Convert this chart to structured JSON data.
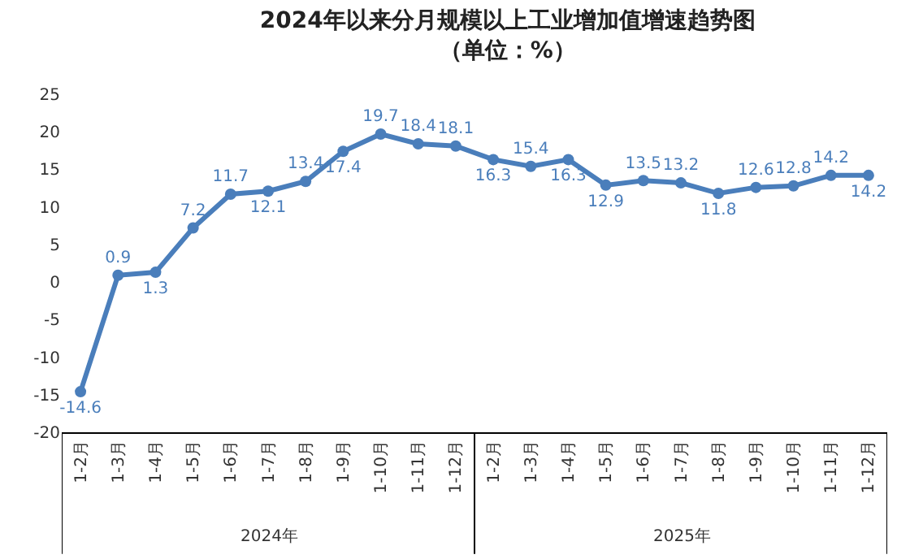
{
  "chart_data": {
    "type": "line",
    "title": "2024年以来分月规模以上工业增加值增速趋势图",
    "subtitle": "（单位：%）",
    "categories": [
      "1-2月",
      "1-3月",
      "1-4月",
      "1-5月",
      "1-6月",
      "1-7月",
      "1-8月",
      "1-9月",
      "1-10月",
      "1-11月",
      "1-12月",
      "1-2月",
      "1-3月",
      "1-4月",
      "1-5月",
      "1-6月",
      "1-7月",
      "1-8月",
      "1-9月",
      "1-10月",
      "1-11月",
      "1-12月"
    ],
    "series": [
      {
        "color": "#4a7ebb",
        "values": [
          -14.6,
          0.9,
          1.3,
          7.2,
          11.7,
          12.1,
          13.4,
          17.4,
          19.7,
          18.4,
          18.1,
          16.3,
          15.4,
          16.3,
          12.9,
          13.5,
          13.2,
          11.8,
          12.6,
          12.8,
          14.2,
          14.2
        ]
      }
    ],
    "annotations": [
      "2024年",
      "2025年"
    ],
    "ylim": [
      -20,
      25
    ],
    "yticks": [
      -20,
      -15,
      -10,
      -5,
      0,
      5,
      10,
      15,
      20,
      25
    ],
    "data_labels": true,
    "legend": false,
    "marker": "circle",
    "line_style": "solid"
  }
}
